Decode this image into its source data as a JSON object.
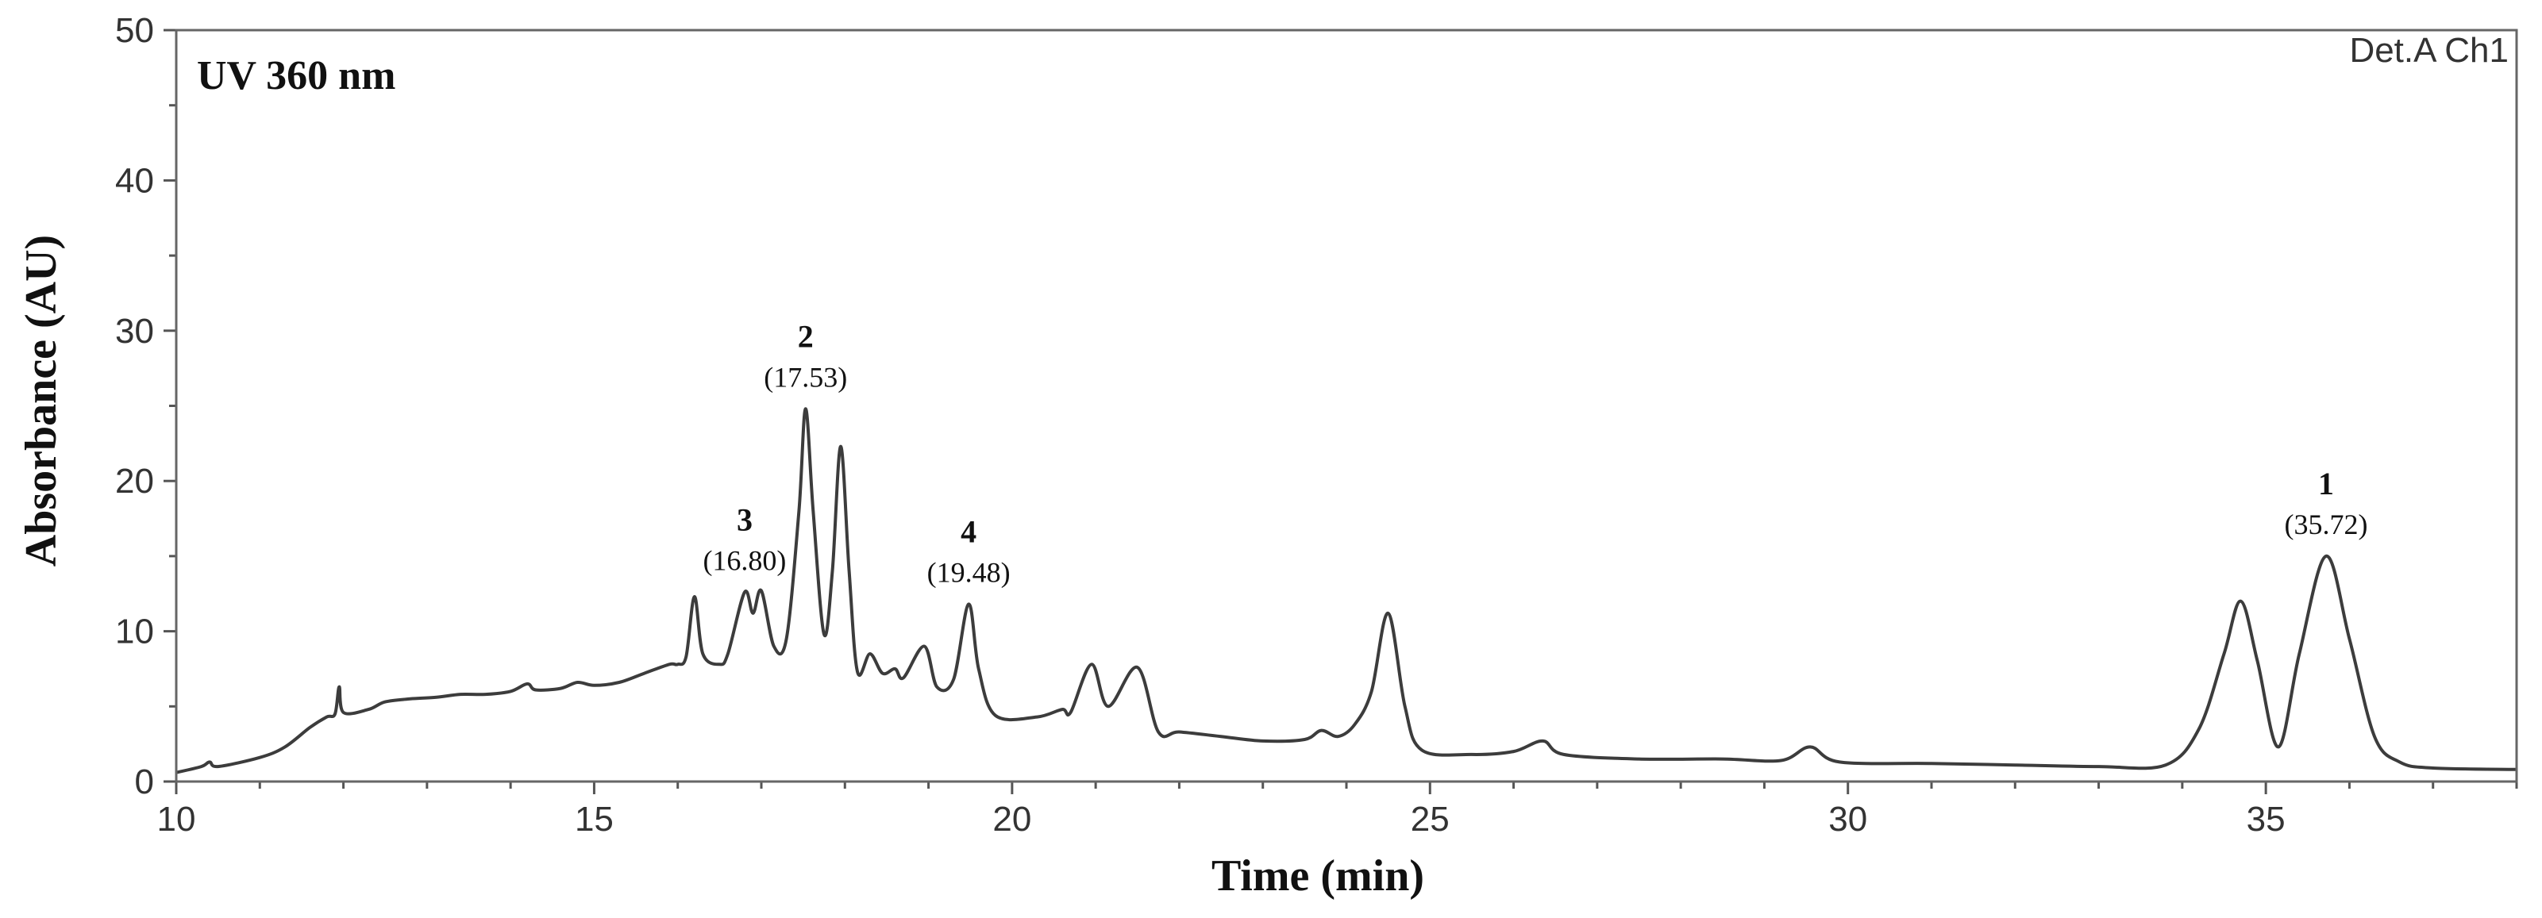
{
  "chart_data": {
    "type": "line",
    "title": "UV 360 nm",
    "detector_label": "Det.A Ch1",
    "xlabel": "Time (min)",
    "ylabel": "Absorbance (AU)",
    "xlim": [
      10,
      38
    ],
    "ylim": [
      0,
      50
    ],
    "x_ticks": [
      10,
      15,
      20,
      25,
      30,
      35
    ],
    "y_ticks": [
      0,
      10,
      20,
      30,
      40,
      50
    ],
    "grid": false,
    "series": [
      {
        "points": [
          [
            10.0,
            0.6
          ],
          [
            10.3,
            1.0
          ],
          [
            10.4,
            1.3
          ],
          [
            10.5,
            1.0
          ],
          [
            11.0,
            1.6
          ],
          [
            11.3,
            2.3
          ],
          [
            11.6,
            3.6
          ],
          [
            11.8,
            4.3
          ],
          [
            11.9,
            4.5
          ],
          [
            11.95,
            6.3
          ],
          [
            12.0,
            4.6
          ],
          [
            12.3,
            4.8
          ],
          [
            12.5,
            5.3
          ],
          [
            12.8,
            5.5
          ],
          [
            13.1,
            5.6
          ],
          [
            13.4,
            5.8
          ],
          [
            13.7,
            5.8
          ],
          [
            14.0,
            6.0
          ],
          [
            14.2,
            6.5
          ],
          [
            14.3,
            6.1
          ],
          [
            14.6,
            6.2
          ],
          [
            14.8,
            6.6
          ],
          [
            15.0,
            6.4
          ],
          [
            15.3,
            6.6
          ],
          [
            15.6,
            7.2
          ],
          [
            15.9,
            7.8
          ],
          [
            16.0,
            7.8
          ],
          [
            16.1,
            8.3
          ],
          [
            16.2,
            12.3
          ],
          [
            16.3,
            8.5
          ],
          [
            16.5,
            7.8
          ],
          [
            16.6,
            8.5
          ],
          [
            16.8,
            12.6
          ],
          [
            16.9,
            11.2
          ],
          [
            17.0,
            12.7
          ],
          [
            17.15,
            9.0
          ],
          [
            17.3,
            9.5
          ],
          [
            17.45,
            18.0
          ],
          [
            17.53,
            24.8
          ],
          [
            17.62,
            18.0
          ],
          [
            17.75,
            9.8
          ],
          [
            17.85,
            14.0
          ],
          [
            17.95,
            22.3
          ],
          [
            18.05,
            14.0
          ],
          [
            18.15,
            7.3
          ],
          [
            18.3,
            8.5
          ],
          [
            18.45,
            7.2
          ],
          [
            18.6,
            7.5
          ],
          [
            18.7,
            6.9
          ],
          [
            18.95,
            9.0
          ],
          [
            19.1,
            6.3
          ],
          [
            19.3,
            6.8
          ],
          [
            19.48,
            11.8
          ],
          [
            19.6,
            7.5
          ],
          [
            19.8,
            4.4
          ],
          [
            20.3,
            4.3
          ],
          [
            20.6,
            4.8
          ],
          [
            20.7,
            4.6
          ],
          [
            20.95,
            7.8
          ],
          [
            21.15,
            5.0
          ],
          [
            21.5,
            7.6
          ],
          [
            21.75,
            3.3
          ],
          [
            22.0,
            3.3
          ],
          [
            22.5,
            3.0
          ],
          [
            23.0,
            2.7
          ],
          [
            23.5,
            2.8
          ],
          [
            23.7,
            3.4
          ],
          [
            23.9,
            3.0
          ],
          [
            24.1,
            3.8
          ],
          [
            24.3,
            6.0
          ],
          [
            24.5,
            11.2
          ],
          [
            24.7,
            5.0
          ],
          [
            24.9,
            2.1
          ],
          [
            25.5,
            1.8
          ],
          [
            26.0,
            2.0
          ],
          [
            26.35,
            2.7
          ],
          [
            26.6,
            1.8
          ],
          [
            27.5,
            1.5
          ],
          [
            28.5,
            1.5
          ],
          [
            29.2,
            1.4
          ],
          [
            29.55,
            2.3
          ],
          [
            29.9,
            1.3
          ],
          [
            31.0,
            1.2
          ],
          [
            32.0,
            1.1
          ],
          [
            33.0,
            1.0
          ],
          [
            33.8,
            1.1
          ],
          [
            34.2,
            3.5
          ],
          [
            34.5,
            8.5
          ],
          [
            34.7,
            12.0
          ],
          [
            34.9,
            8.0
          ],
          [
            35.15,
            2.3
          ],
          [
            35.4,
            8.5
          ],
          [
            35.72,
            15.0
          ],
          [
            36.0,
            9.5
          ],
          [
            36.3,
            3.0
          ],
          [
            36.6,
            1.3
          ],
          [
            37.0,
            0.9
          ],
          [
            38.0,
            0.8
          ]
        ]
      }
    ],
    "annotations": [
      {
        "label": "1",
        "time": "(35.72)",
        "x": 35.72,
        "y": 15.0
      },
      {
        "label": "2",
        "time": "(17.53)",
        "x": 17.53,
        "y": 24.8
      },
      {
        "label": "3",
        "time": "(16.80)",
        "x": 16.8,
        "y": 12.6
      },
      {
        "label": "4",
        "time": "(19.48)",
        "x": 19.48,
        "y": 11.8
      }
    ]
  }
}
